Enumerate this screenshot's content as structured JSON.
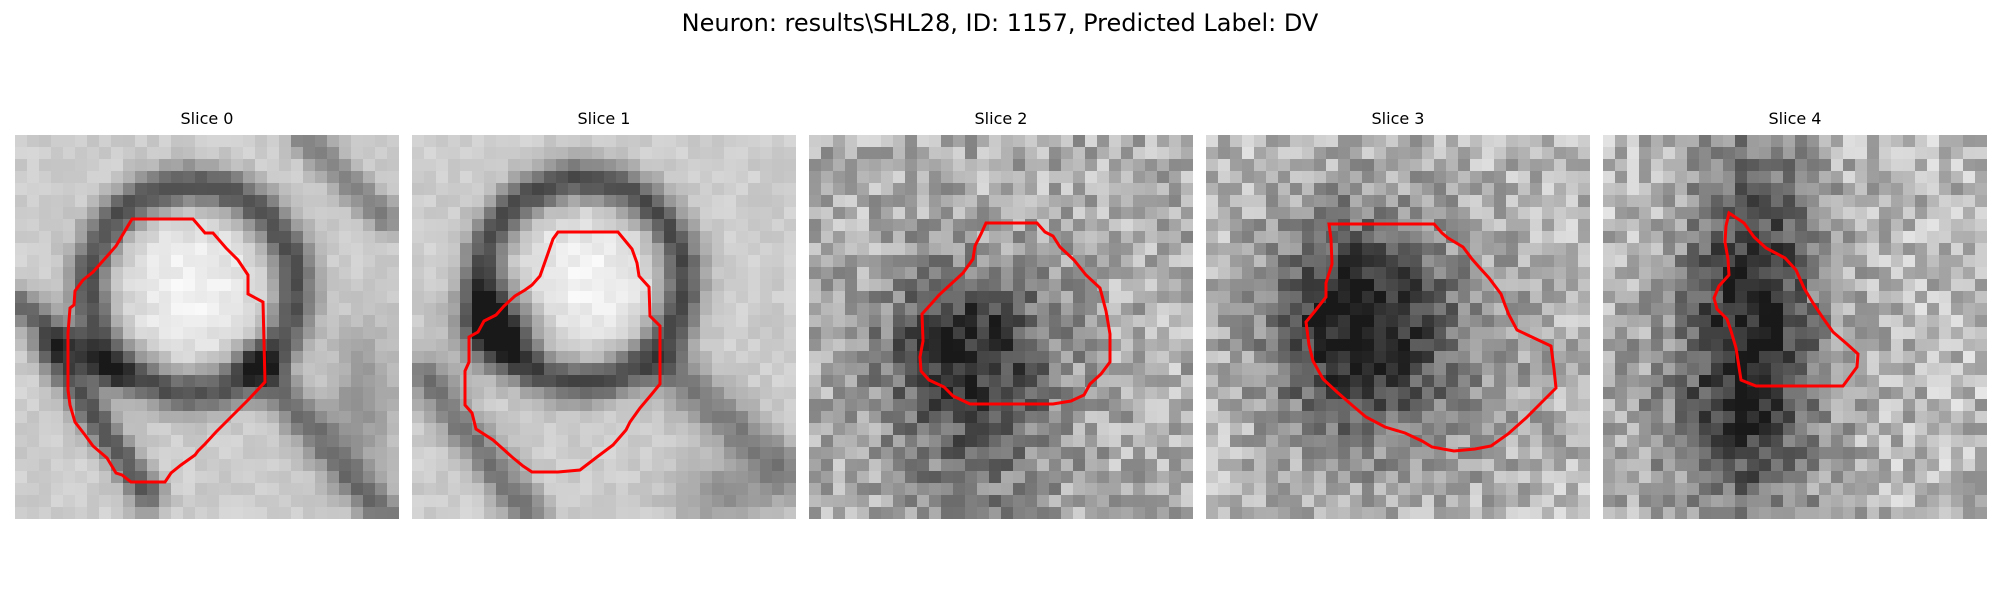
{
  "figure": {
    "title": "Neuron: results\\SHL28, ID: 1157, Predicted Label: DV",
    "contour_color": "#ff0000"
  },
  "panels": [
    {
      "title": "Slice 0"
    },
    {
      "title": "Slice 1"
    },
    {
      "title": "Slice 2"
    },
    {
      "title": "Slice 3"
    },
    {
      "title": "Slice 4"
    }
  ]
}
